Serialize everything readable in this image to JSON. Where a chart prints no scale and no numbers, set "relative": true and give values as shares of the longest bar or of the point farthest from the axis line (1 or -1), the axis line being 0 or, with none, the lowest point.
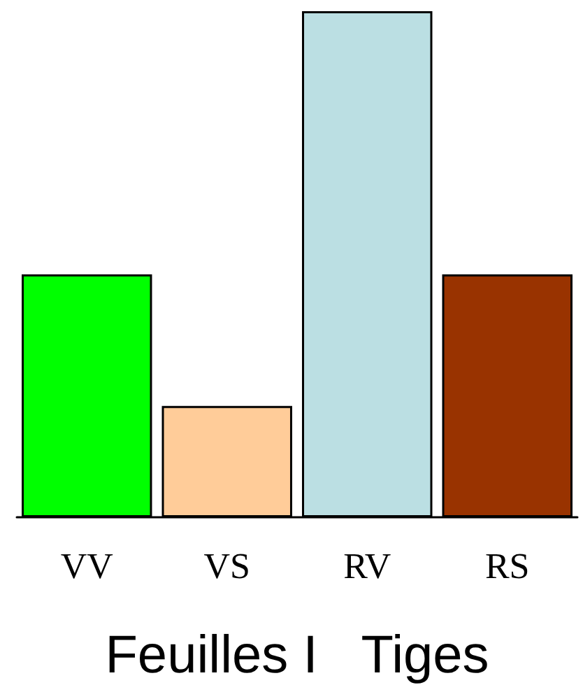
{
  "chart_data": {
    "type": "bar",
    "relative": true,
    "xlabel": "Feuilles I   Tiges",
    "categories": [
      "VV",
      "VS",
      "RV",
      "RS"
    ],
    "values": [
      0.48,
      0.22,
      1,
      0.48
    ],
    "colors": [
      "#00ff00",
      "#ffcc99",
      "#bbdfe3",
      "#993300"
    ]
  }
}
